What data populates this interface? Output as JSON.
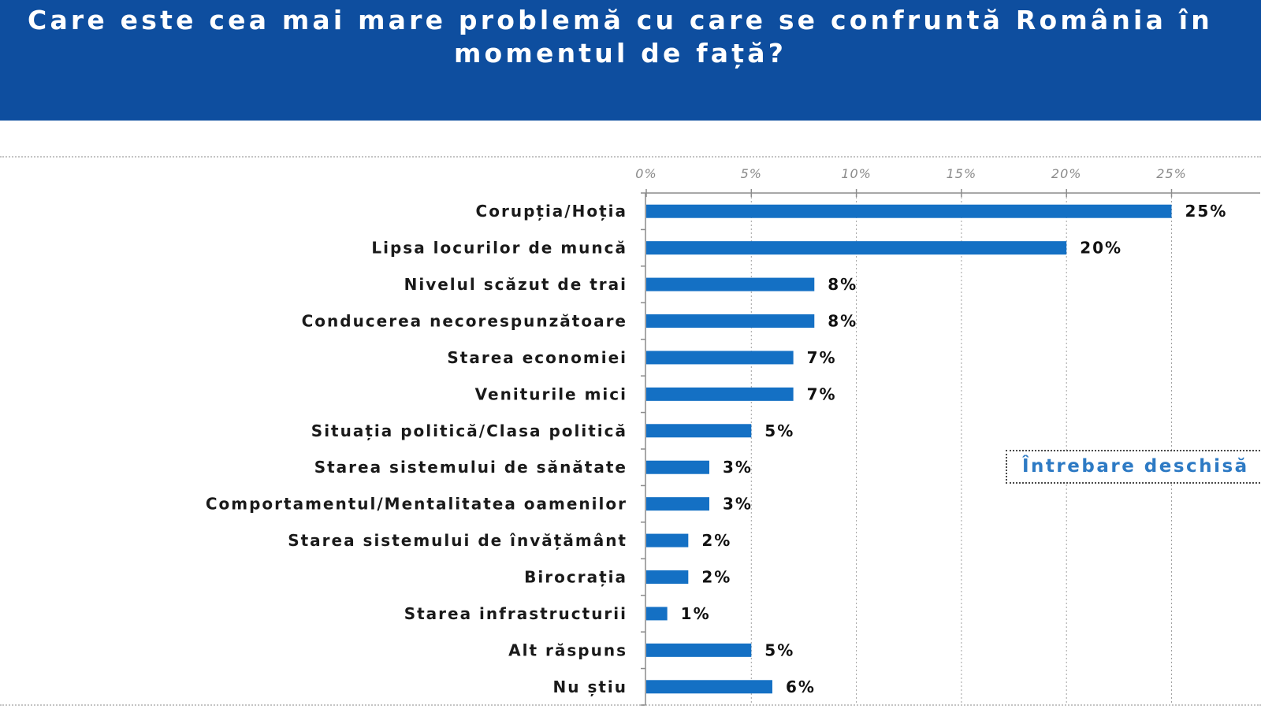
{
  "colors": {
    "banner": "#0e4e9f",
    "title_text": "#ffffff",
    "bar": "#1470c4",
    "note_text": "#2d7ac4"
  },
  "note": {
    "label": "Întrebare deschisă"
  },
  "chart_data": {
    "type": "bar",
    "title": "Care este cea mai mare problemă cu care se confruntă România în momentul de față?",
    "categories": [
      "Corupția/Hoția",
      "Lipsa locurilor de muncă",
      "Nivelul scăzut de trai",
      "Conducerea necorespunzătoare",
      "Starea economiei",
      "Veniturile mici",
      "Situația politică/Clasa politică",
      "Starea sistemului de sănătate",
      "Comportamentul/Mentalitatea oamenilor",
      "Starea sistemului de învățământ",
      "Birocrația",
      "Starea infrastructurii",
      "Alt răspuns",
      "Nu știu"
    ],
    "values": [
      25,
      20,
      8,
      8,
      7,
      7,
      5,
      3,
      3,
      2,
      2,
      1,
      5,
      6
    ],
    "data_labels": [
      "25%",
      "20%",
      "8%",
      "8%",
      "7%",
      "7%",
      "5%",
      "3%",
      "3%",
      "2%",
      "2%",
      "1%",
      "5%",
      "6%"
    ],
    "x_ticks": [
      0,
      5,
      10,
      15,
      20,
      25
    ],
    "x_tick_labels": [
      "0%",
      "5%",
      "10%",
      "15%",
      "20%",
      "25%"
    ],
    "xlim": [
      0,
      30
    ],
    "grid": true
  }
}
